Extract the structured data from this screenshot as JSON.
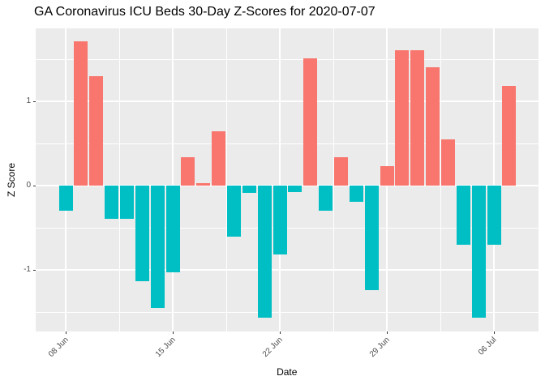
{
  "chart_data": {
    "type": "bar",
    "title": "GA Coronavirus ICU Beds 30-Day Z-Scores for 2020-07-07",
    "xlabel": "Date",
    "ylabel": "Z Score",
    "x": [
      "2020-06-08",
      "2020-06-09",
      "2020-06-10",
      "2020-06-11",
      "2020-06-12",
      "2020-06-13",
      "2020-06-14",
      "2020-06-15",
      "2020-06-16",
      "2020-06-17",
      "2020-06-18",
      "2020-06-19",
      "2020-06-20",
      "2020-06-21",
      "2020-06-22",
      "2020-06-23",
      "2020-06-24",
      "2020-06-25",
      "2020-06-26",
      "2020-06-27",
      "2020-06-28",
      "2020-06-29",
      "2020-06-30",
      "2020-07-01",
      "2020-07-02",
      "2020-07-03",
      "2020-07-04",
      "2020-07-05",
      "2020-07-06",
      "2020-07-07"
    ],
    "values": [
      -0.29,
      1.71,
      1.3,
      -0.39,
      -0.39,
      -1.13,
      -1.45,
      -1.02,
      0.34,
      0.03,
      0.65,
      -0.6,
      -0.08,
      -1.56,
      -0.81,
      -0.07,
      1.51,
      -0.29,
      0.34,
      -0.19,
      -1.24,
      0.23,
      1.61,
      1.61,
      1.4,
      0.55,
      -0.7,
      -1.56,
      -0.7,
      1.18
    ],
    "positive_color": "#F8766D",
    "negative_color": "#00BFC4",
    "panel_background": "#EBEBEB",
    "gridline_color": "#FFFFFF",
    "axis_text_color": "#4D4D4D",
    "ylim": [
      -1.72,
      1.87
    ],
    "y_major_ticks": [
      -1,
      0,
      1
    ],
    "y_tick_labels": [
      "-1",
      "0",
      "1"
    ],
    "y_minor_ticks": [
      -1.5,
      -0.5,
      0.5,
      1.5
    ],
    "x_tick_labels": [
      "08 Jun",
      "15 Jun",
      "22 Jun",
      "29 Jun",
      "06 Jul"
    ],
    "x_tick_indices": [
      0,
      7,
      14,
      21,
      28
    ],
    "x_minor_positions": [
      3.5,
      10.5,
      17.5,
      24.5
    ],
    "grid": true,
    "legend": "none"
  }
}
